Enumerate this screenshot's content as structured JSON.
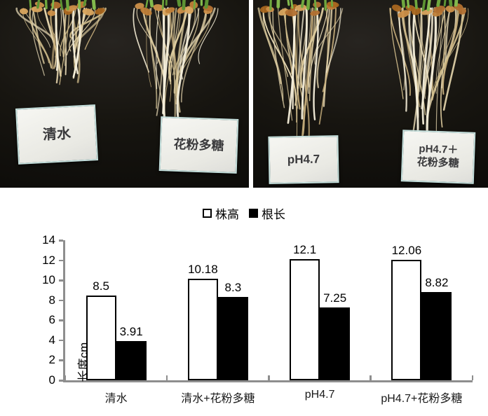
{
  "figure": {
    "photo_panels": [
      {
        "name": "left",
        "cards": [
          {
            "label": "清水"
          },
          {
            "label": "花粉多糖"
          }
        ]
      },
      {
        "name": "right",
        "cards": [
          {
            "label": "pH4.7"
          },
          {
            "label": "pH4.7＋\n花粉多糖"
          }
        ]
      }
    ]
  },
  "chart_data": {
    "type": "bar",
    "title": "",
    "categories": [
      "清水",
      "清水+花粉多糖",
      "pH4.7",
      "pH4.7+花粉多糖"
    ],
    "series": [
      {
        "name": "株高",
        "fill": "#ffffff",
        "border": "#000000",
        "values": [
          8.5,
          10.18,
          12.1,
          12.06
        ]
      },
      {
        "name": "根长",
        "fill": "#000000",
        "values": [
          3.91,
          8.3,
          7.25,
          8.82
        ]
      }
    ],
    "ylabel": "长度cm",
    "xlabel": "",
    "ylim": [
      0,
      14
    ],
    "ytick_step": 2,
    "yticks": [
      0,
      2,
      4,
      6,
      8,
      10,
      12,
      14
    ],
    "grid": false,
    "legend_position": "top",
    "axis_color": "#8e8e8e",
    "data_labels": true
  }
}
